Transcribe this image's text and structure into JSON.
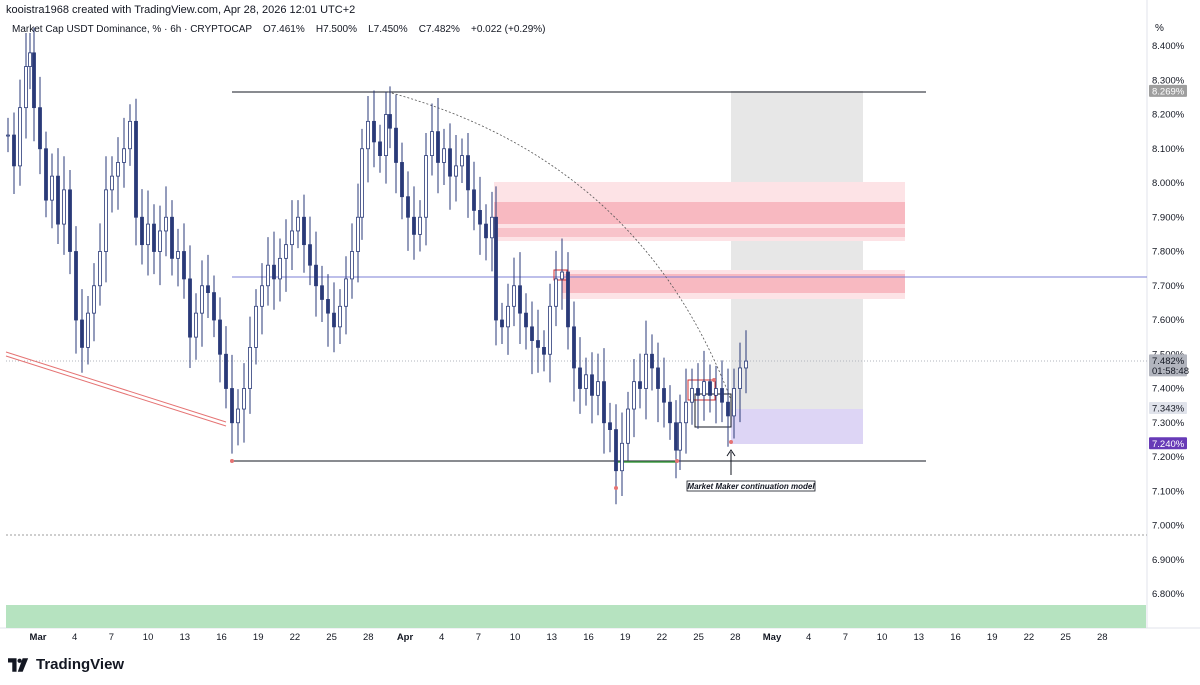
{
  "header": {
    "credit": "kooistra1968 created with TradingView.com, Apr 28, 2026 12:01 UTC+2"
  },
  "symbol": {
    "name": "Market Cap USDT Dominance, % · 6h · CRYPTOCAP",
    "open": "O7.461%",
    "high": "H7.500%",
    "low": "L7.450%",
    "close": "C7.482%",
    "change": "+0.022 (+0.29%)"
  },
  "axis": {
    "unit": "%",
    "y_ticks": [
      "8.400%",
      "8.300%",
      "8.200%",
      "8.100%",
      "8.000%",
      "7.900%",
      "7.800%",
      "7.700%",
      "7.600%",
      "7.500%",
      "7.400%",
      "7.300%",
      "7.200%",
      "7.100%",
      "7.000%",
      "6.900%",
      "6.800%"
    ],
    "x_ticks": [
      "Mar",
      "4",
      "7",
      "10",
      "13",
      "16",
      "19",
      "22",
      "25",
      "28",
      "Apr",
      "4",
      "7",
      "10",
      "13",
      "16",
      "19",
      "22",
      "25",
      "28",
      "May",
      "4",
      "7",
      "10",
      "13",
      "16",
      "19",
      "22",
      "25",
      "28"
    ]
  },
  "price_tags": [
    {
      "label": "8.269%",
      "value": 8.269,
      "bg": "#9e9e9e",
      "fg": "#ffffff"
    },
    {
      "label": "7.482%",
      "value": 7.482,
      "bg": "#b2b5be",
      "fg": "#131722",
      "sub": "01:58:48"
    },
    {
      "label": "7.343%",
      "value": 7.343,
      "bg": "#e0e3eb",
      "fg": "#131722"
    },
    {
      "label": "7.240%",
      "value": 7.24,
      "bg": "#673ab7",
      "fg": "#ffffff"
    }
  ],
  "annotation": {
    "note": "Market Maker continuation model"
  },
  "brand": {
    "name": "TradingView"
  },
  "chart_data": {
    "type": "candlestick",
    "title": "Market Cap USDT Dominance, % · 6h · CRYPTOCAP",
    "ylim": [
      6.75,
      8.45
    ],
    "yunit": "%",
    "last_price": 7.482,
    "levels": {
      "range_high": 8.269,
      "range_low": 7.19,
      "mid_line": 7.725,
      "dotted_level": 6.98,
      "current_price": 7.482
    },
    "zones": [
      {
        "name": "supply zone upper",
        "from": 7.83,
        "to": 8.01
      },
      {
        "name": "supply zone lower",
        "from": 7.66,
        "to": 7.75
      },
      {
        "name": "demand band",
        "from": 6.75,
        "to": 6.82
      }
    ],
    "trade_setup": {
      "entry": 7.343,
      "target": 8.269,
      "stop": 7.24
    },
    "colors": {
      "candle": "#2a3a78",
      "supply": "#f7b7bf",
      "mid_line": "#7b7fd6",
      "demand": "#b6e3c0",
      "stop_zone": "#d9d2f3",
      "target_zone": "#e3e3e3"
    }
  }
}
